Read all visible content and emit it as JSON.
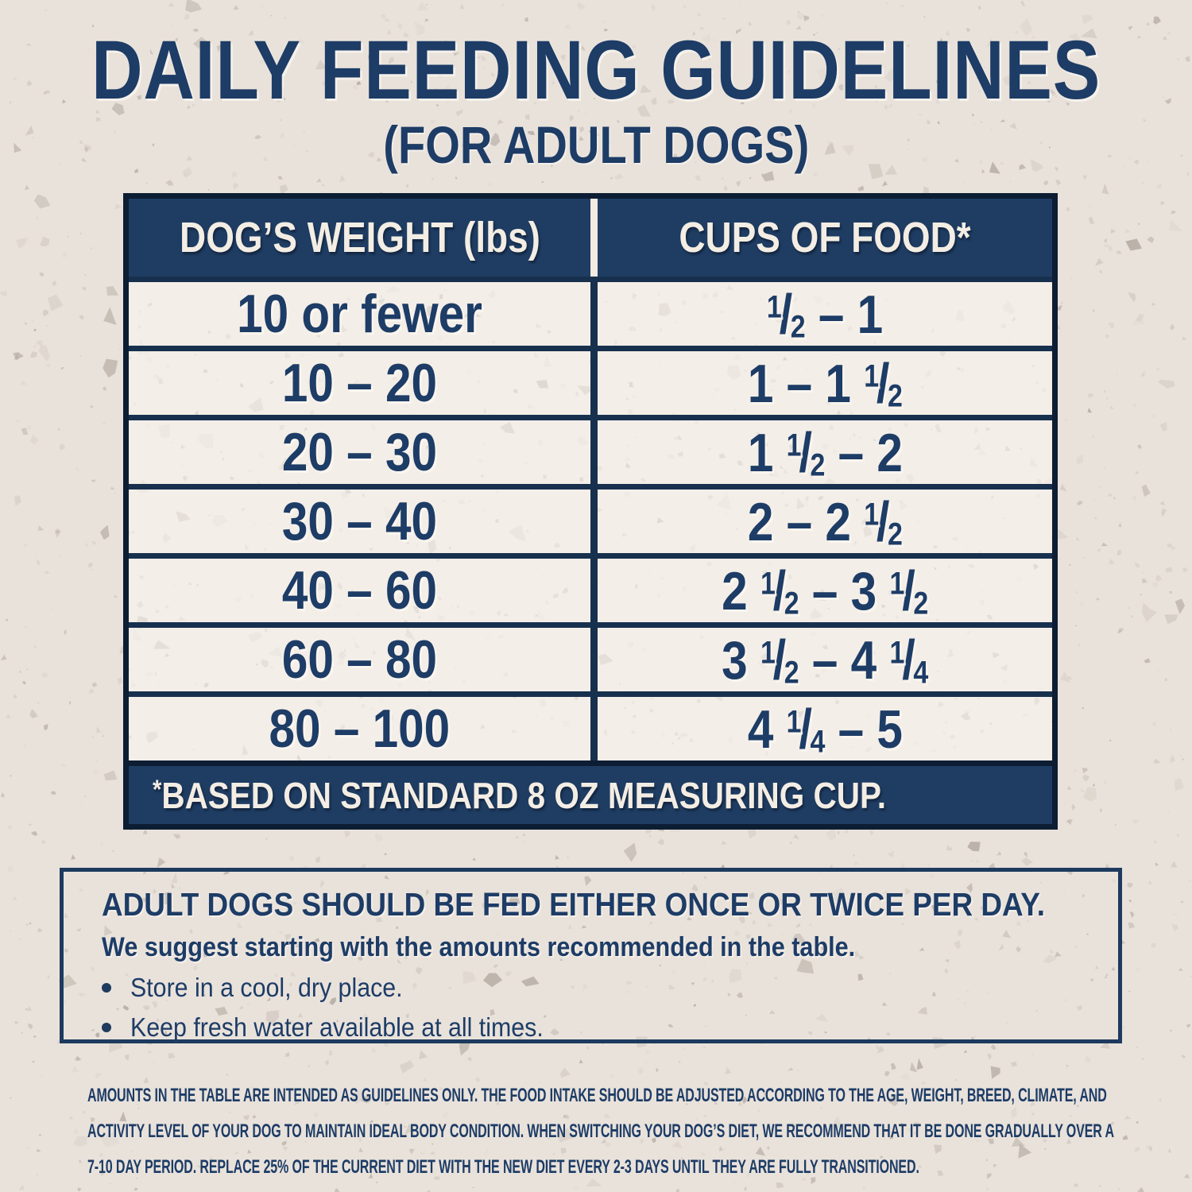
{
  "header": {
    "title": "DAILY FEEDING GUIDELINES",
    "subtitle": "(FOR ADULT DOGS)"
  },
  "table": {
    "columns": [
      "DOG’S WEIGHT (lbs)",
      "CUPS OF FOOD*"
    ],
    "rows": [
      {
        "weight": "10 or fewer",
        "cups": "1/2 – 1"
      },
      {
        "weight": "10 – 20",
        "cups": "1 – 1 1/2"
      },
      {
        "weight": "20 – 30",
        "cups": "1 1/2 – 2"
      },
      {
        "weight": "30 – 40",
        "cups": "2 – 2 1/2"
      },
      {
        "weight": "40 – 60",
        "cups": "2 1/2 – 3 1/2"
      },
      {
        "weight": "60 – 80",
        "cups": "3 1/2 – 4 1/4"
      },
      {
        "weight": "80 – 100",
        "cups": "4 1/4 – 5"
      }
    ],
    "footnote": "*BASED ON STANDARD 8 OZ MEASURING CUP."
  },
  "note": {
    "heading": "ADULT DOGS SHOULD BE FED EITHER ONCE OR TWICE PER DAY.",
    "subheading": "We suggest starting with the amounts recommended in the table.",
    "bullets": [
      "Store in a cool, dry place.",
      "Keep fresh water available at all times."
    ]
  },
  "disclaimer": "AMOUNTS IN THE TABLE ARE INTENDED AS GUIDELINES ONLY. THE FOOD INTAKE SHOULD BE ADJUSTED ACCORDING TO THE AGE, WEIGHT, BREED, CLIMATE, AND ACTIVITY LEVEL OF YOUR DOG TO MAINTAIN IDEAL BODY CONDITION. WHEN SWITCHING YOUR DOG’S DIET, WE RECOMMEND THAT IT BE DONE GRADUALLY OVER A 7-10 DAY PERIOD. REPLACE 25% OF THE CURRENT DIET WITH THE NEW DIET EVERY 2-3 DAYS UNTIL THEY ARE FULLY TRANSITIONED.",
  "colors": {
    "navy": "#1f3d63",
    "navy_text": "#1d3c66",
    "dark_border": "#0d1d33",
    "cream": "#f3ede4",
    "background": "#e9e2db"
  }
}
